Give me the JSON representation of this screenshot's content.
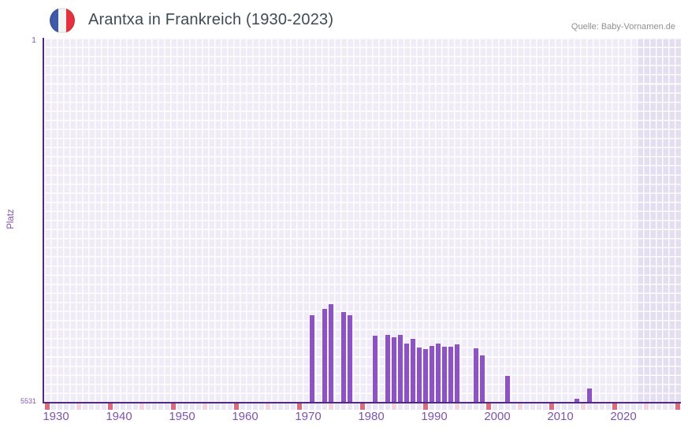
{
  "header": {
    "title": "Arantxa in Frankreich (1930-2023)",
    "source": "Quelle: Baby-Vornamen.de",
    "flag_icon": "france-flag-icon"
  },
  "chart_data": {
    "type": "bar",
    "title": "Arantxa in Frankreich (1930-2023)",
    "xlabel": "",
    "ylabel": "Platz",
    "y_axis": {
      "top_tick": "1",
      "bottom_tick": "5531",
      "min": 1,
      "max": 5531,
      "inverted": true
    },
    "x_axis": {
      "range_start": 1930,
      "range_end": 2030,
      "data_end": 2023,
      "tick_labels": [
        "1930",
        "1940",
        "1950",
        "1960",
        "1970",
        "1980",
        "1990",
        "2000",
        "2010",
        "2020"
      ],
      "tick_years": [
        1930,
        1940,
        1950,
        1960,
        1970,
        1980,
        1990,
        2000,
        2010,
        2020
      ]
    },
    "legend": "none",
    "grid": true,
    "points": [
      {
        "year": 1972,
        "rank": 4210
      },
      {
        "year": 1974,
        "rank": 4120
      },
      {
        "year": 1975,
        "rank": 4050
      },
      {
        "year": 1977,
        "rank": 4160
      },
      {
        "year": 1978,
        "rank": 4210
      },
      {
        "year": 1982,
        "rank": 4530
      },
      {
        "year": 1984,
        "rank": 4510
      },
      {
        "year": 1985,
        "rank": 4550
      },
      {
        "year": 1986,
        "rank": 4510
      },
      {
        "year": 1987,
        "rank": 4650
      },
      {
        "year": 1988,
        "rank": 4570
      },
      {
        "year": 1989,
        "rank": 4700
      },
      {
        "year": 1990,
        "rank": 4730
      },
      {
        "year": 1991,
        "rank": 4680
      },
      {
        "year": 1992,
        "rank": 4650
      },
      {
        "year": 1993,
        "rank": 4690
      },
      {
        "year": 1994,
        "rank": 4690
      },
      {
        "year": 1995,
        "rank": 4660
      },
      {
        "year": 1998,
        "rank": 4720
      },
      {
        "year": 1999,
        "rank": 4820
      },
      {
        "year": 2003,
        "rank": 5130
      },
      {
        "year": 2014,
        "rank": 5480
      },
      {
        "year": 2016,
        "rank": 5330
      }
    ],
    "colors": {
      "bar": "#8c52c6",
      "axis_line": "#4f2a80",
      "plot_background": "#efecf8",
      "future_band": "#e3def0",
      "decade_marker": "#e06a7a",
      "half_decade_marker": "#f5d2dc",
      "year_marker": "#ebe6f5",
      "x_tick_text": "#7e53ae",
      "y_tick_text": "#8459ae",
      "title_text": "#3e4b55",
      "flag_blue": "#3f5aa9",
      "flag_red": "#e5323e"
    }
  }
}
